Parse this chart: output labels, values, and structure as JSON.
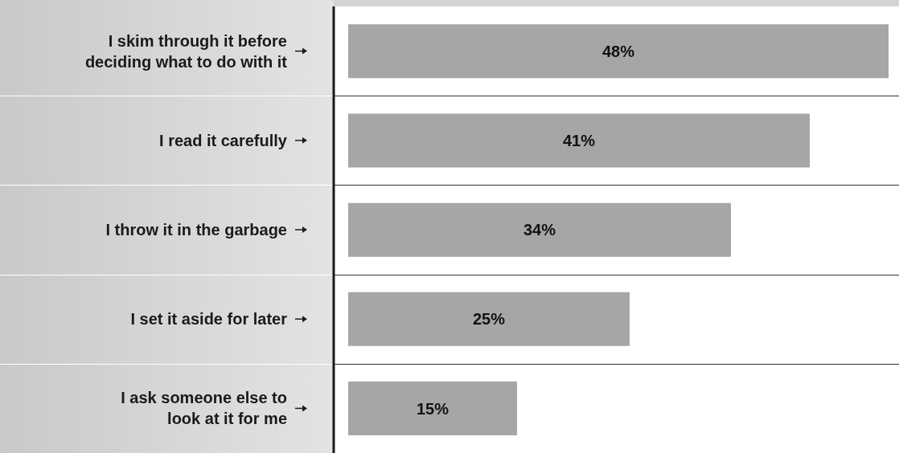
{
  "chart_data": {
    "type": "bar",
    "orientation": "horizontal",
    "categories": [
      "I skim through it before\ndeciding what to do with it",
      "I read it carefully",
      "I throw it in the garbage",
      "I set it aside for later",
      "I ask someone else to\nlook at it for me"
    ],
    "values": [
      48,
      41,
      34,
      25,
      15
    ],
    "value_labels": [
      "48%",
      "41%",
      "34%",
      "25%",
      "15%"
    ],
    "color": "#a6a6a6"
  }
}
